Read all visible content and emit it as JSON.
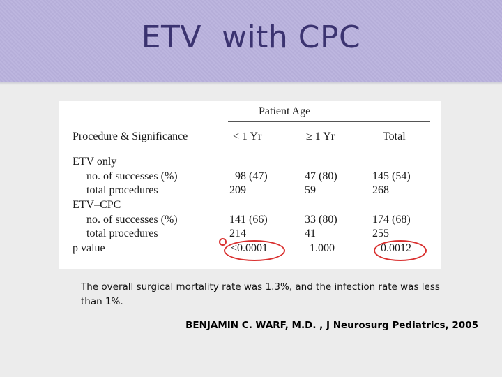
{
  "slide": {
    "title": "ETV  with CPC"
  },
  "table": {
    "group_header": "Patient Age",
    "columns": [
      "Procedure & Significance",
      "< 1 Yr",
      "≥ 1 Yr",
      "Total"
    ],
    "rows": [
      {
        "label": "ETV only",
        "indent": false,
        "values": [
          "",
          "",
          ""
        ]
      },
      {
        "label": "no. of successes (%)",
        "indent": true,
        "values": [
          "98 (47)",
          "47 (80)",
          "145 (54)"
        ]
      },
      {
        "label": "total procedures",
        "indent": true,
        "values": [
          "209",
          "59",
          "268"
        ]
      },
      {
        "label": "ETV–CPC",
        "indent": false,
        "values": [
          "",
          "",
          ""
        ]
      },
      {
        "label": "no. of successes (%)",
        "indent": true,
        "values": [
          "141 (66)",
          "33 (80)",
          "174 (68)"
        ]
      },
      {
        "label": "total procedures",
        "indent": true,
        "values": [
          "214",
          "41",
          "255"
        ]
      },
      {
        "label": "p value",
        "indent": false,
        "values": [
          "<0.0001",
          "1.000",
          "0.0012"
        ]
      }
    ],
    "highlight_color": "#d9302f"
  },
  "note": "The overall surgical mortality rate was 1.3%, and the infection rate was less than 1%.",
  "citation": "BENJAMIN C. WARF, M.D. , J Neurosurg Pediatrics, 2005",
  "theme": {
    "title_band_color": "#b9b1dd",
    "title_text_color": "#3b3370",
    "background_color": "#ececec"
  }
}
